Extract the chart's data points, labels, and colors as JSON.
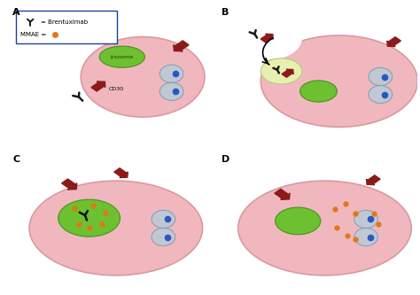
{
  "background": "#ffffff",
  "cell_color": "#f0b8be",
  "cell_edge": "#d89aa0",
  "lysosome_color": "#6dc030",
  "lysosome_edge": "#4a9020",
  "endosome_color": "#e8f0b0",
  "endosome_edge": "#b8c880",
  "arrow_color": "#8b1a1a",
  "antibody_color": "#1a1a1a",
  "cd30_label": "CD30",
  "lysosome_label": "lysosome",
  "mmae_color": "#e07818",
  "tubulin_color": "#b8ccd8",
  "tubulin_edge": "#8098b0",
  "dot_color": "#2858c0",
  "panel_labels": [
    "A",
    "B",
    "C",
    "D"
  ],
  "legend_antibody": "= Brentuximab",
  "legend_mmae": "MMAE = ",
  "legend_box_color": "#2040a0"
}
